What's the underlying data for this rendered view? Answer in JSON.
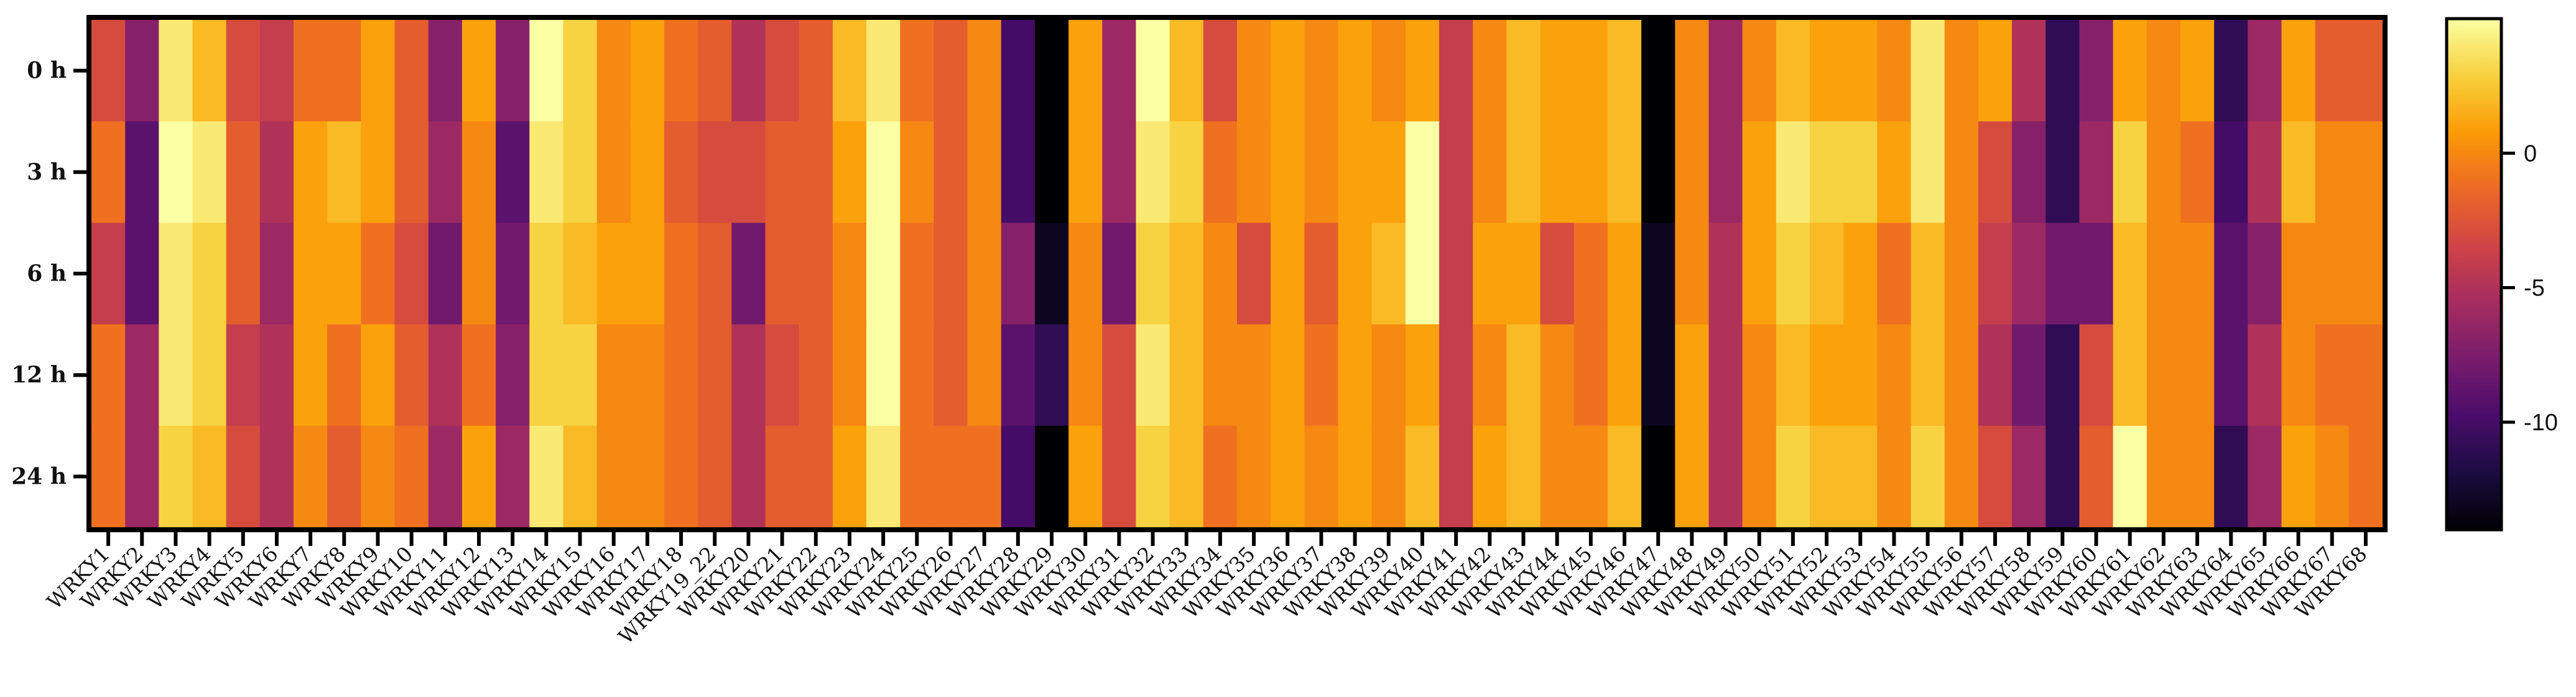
{
  "chart_data": {
    "type": "heatmap",
    "rows": [
      "0 h",
      "3 h",
      "6 h",
      "12 h",
      "24 h"
    ],
    "columns": [
      "WRKY1",
      "WRKY2",
      "WRKY3",
      "WRKY4",
      "WRKY5",
      "WRKY6",
      "WRKY7",
      "WRKY8",
      "WRKY9",
      "WRKY10",
      "WRKY11",
      "WRKY12",
      "WRKY13",
      "WRKY14",
      "WRKY15",
      "WRKY16",
      "WRKY17",
      "WRKY18",
      "WRKY19_22",
      "WRKY20",
      "WRKY21",
      "WRKY22",
      "WRKY23",
      "WRKY24",
      "WRKY25",
      "WRKY26",
      "WRKY27",
      "WRKY28",
      "WRKY29",
      "WRKY30",
      "WRKY31",
      "WRKY32",
      "WRKY33",
      "WRKY34",
      "WRKY35",
      "WRKY36",
      "WRKY37",
      "WRKY38",
      "WRKY39",
      "WRKY40",
      "WRKY41",
      "WRKY42",
      "WRKY43",
      "WRKY44",
      "WRKY45",
      "WRKY46",
      "WRKY47",
      "WRKY48",
      "WRKY49",
      "WRKY50",
      "WRKY51",
      "WRKY52",
      "WRKY53",
      "WRKY54",
      "WRKY55",
      "WRKY56",
      "WRKY57",
      "WRKY58",
      "WRKY59",
      "WRKY60",
      "WRKY61",
      "WRKY62",
      "WRKY63",
      "WRKY64",
      "WRKY65",
      "WRKY66",
      "WRKY67",
      "WRKY68"
    ],
    "values": [
      [
        -3,
        -7,
        4,
        2,
        -3,
        -4,
        -1,
        -1,
        1,
        -2,
        -7,
        1,
        -7,
        5,
        3,
        0,
        1,
        -1,
        -2,
        -5,
        -3,
        -2,
        2,
        4,
        -1,
        -2,
        0,
        -10,
        -14,
        1,
        -6,
        5,
        2,
        -3,
        0,
        1,
        0,
        1,
        0,
        1,
        -4,
        0,
        2,
        1,
        1,
        2,
        -14,
        0,
        -6,
        0,
        2,
        1,
        1,
        0,
        4,
        0,
        1,
        -5,
        -11,
        -7,
        1,
        0,
        1,
        -11,
        -6,
        1,
        -2,
        -2
      ],
      [
        -1,
        -9,
        5,
        4,
        -2,
        -5,
        1,
        2,
        1,
        -2,
        -6,
        0,
        -9,
        4,
        3,
        0,
        1,
        -2,
        -3,
        -3,
        -2,
        -2,
        1,
        5,
        0,
        -2,
        0,
        -10,
        -14,
        1,
        -6,
        4,
        3,
        -1,
        0,
        1,
        0,
        1,
        1,
        5,
        -4,
        0,
        2,
        1,
        1,
        2,
        -14,
        0,
        -6,
        1,
        4,
        3,
        3,
        1,
        4,
        0,
        -3,
        -7,
        -11,
        -6,
        3,
        0,
        -1,
        -10,
        -5,
        2,
        0,
        0
      ],
      [
        -4,
        -9,
        4,
        3,
        -2,
        -6,
        1,
        1,
        -1,
        -3,
        -8,
        0,
        -8,
        3,
        2,
        1,
        1,
        -1,
        -2,
        -8,
        -2,
        -2,
        0,
        5,
        -1,
        -2,
        0,
        -7,
        -13,
        0,
        -8,
        3,
        2,
        0,
        -3,
        1,
        -2,
        1,
        2,
        5,
        -4,
        1,
        1,
        -3,
        -1,
        1,
        -13,
        0,
        -5,
        1,
        3,
        2,
        1,
        -1,
        2,
        0,
        -4,
        -6,
        -8,
        -8,
        2,
        0,
        0,
        -9,
        -7,
        0,
        0,
        0
      ],
      [
        -1,
        -6,
        4,
        3,
        -4,
        -5,
        1,
        -1,
        1,
        -2,
        -5,
        -1,
        -7,
        3,
        3,
        0,
        0,
        -1,
        -2,
        -5,
        -3,
        -2,
        0,
        5,
        -1,
        -2,
        0,
        -9,
        -11,
        0,
        -3,
        4,
        2,
        0,
        0,
        1,
        -1,
        1,
        0,
        1,
        -4,
        0,
        2,
        0,
        -1,
        1,
        -13,
        1,
        -5,
        0,
        2,
        1,
        1,
        0,
        2,
        0,
        -5,
        -8,
        -11,
        -3,
        2,
        0,
        0,
        -9,
        -5,
        0,
        -1,
        -1
      ],
      [
        -1,
        -6,
        3,
        2,
        -3,
        -5,
        0,
        -2,
        0,
        -1,
        -6,
        1,
        -6,
        4,
        2,
        0,
        0,
        -1,
        -2,
        -5,
        -2,
        -2,
        1,
        4,
        -1,
        -1,
        -1,
        -10,
        -14,
        1,
        -3,
        3,
        2,
        -1,
        0,
        1,
        0,
        1,
        0,
        2,
        -4,
        1,
        2,
        0,
        0,
        2,
        -14,
        1,
        -5,
        0,
        3,
        2,
        2,
        0,
        3,
        0,
        -3,
        -6,
        -11,
        -2,
        5,
        0,
        0,
        -11,
        -6,
        1,
        0,
        -1
      ]
    ],
    "colorbar": {
      "ticks": [
        0,
        -5,
        -10
      ],
      "tick_labels": [
        "0",
        "-5",
        "-10"
      ],
      "range": [
        -14,
        5
      ]
    },
    "colormap": [
      "#000004",
      "#1b0c41",
      "#4a0c6b",
      "#781c6d",
      "#a52c60",
      "#cf4446",
      "#ed6925",
      "#fb9b06",
      "#f7d13d",
      "#fcffa4"
    ]
  }
}
